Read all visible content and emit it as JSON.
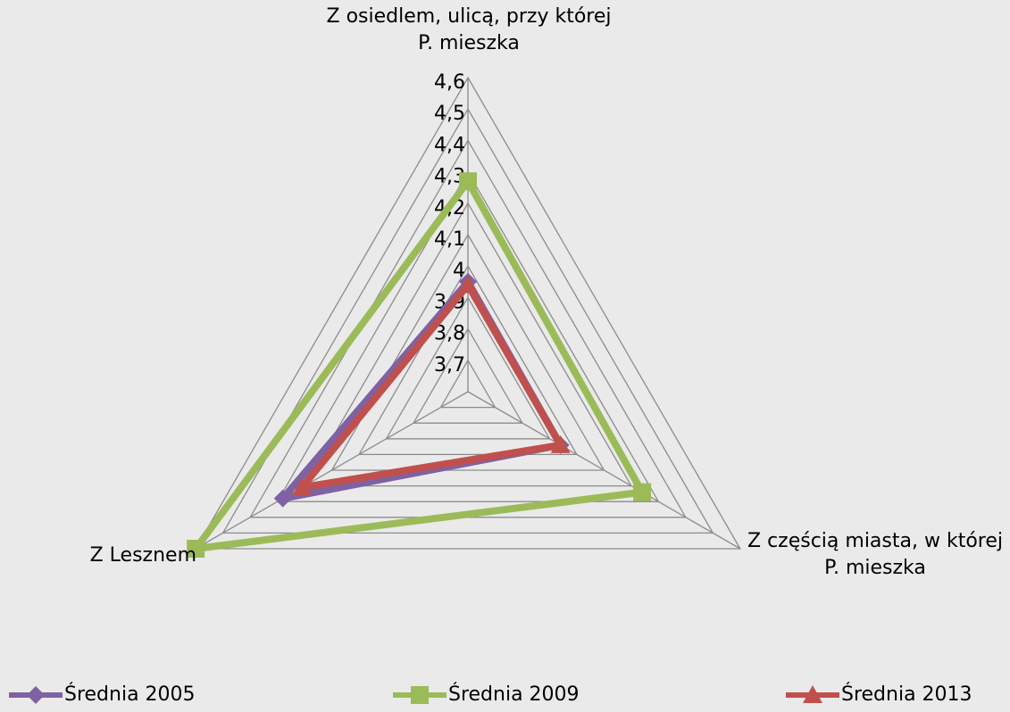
{
  "chart_data": {
    "type": "radar",
    "categories": [
      "Z osiedlem, ulicą, przy której P. mieszka",
      "Z częścią miasta, w której P. mieszka",
      "Z Lesznem"
    ],
    "series": [
      {
        "name": "Średnia 2005",
        "color": "#7e62a3",
        "marker": "diamond",
        "values": [
          3.95,
          3.94,
          4.28
        ]
      },
      {
        "name": "Średnia 2009",
        "color": "#9bbb59",
        "marker": "square",
        "values": [
          4.27,
          4.24,
          4.6
        ]
      },
      {
        "name": "Średnia 2013",
        "color": "#c0504d",
        "marker": "triangle",
        "values": [
          3.94,
          3.94,
          4.21
        ]
      }
    ],
    "ylim": [
      3.6,
      4.6
    ],
    "yticks": [
      {
        "value": 3.7,
        "label": "3,7"
      },
      {
        "value": 3.8,
        "label": "3,8"
      },
      {
        "value": 3.9,
        "label": "3,9"
      },
      4,
      {
        "value": 4.1,
        "label": "4,1"
      },
      {
        "value": 4.2,
        "label": "4,2"
      },
      {
        "value": 4.3,
        "label": "4,3"
      },
      {
        "value": 4.4,
        "label": "4,4"
      },
      {
        "value": 4.5,
        "label": "4,5"
      },
      {
        "value": 4.6,
        "label": "4,6"
      }
    ],
    "grid": true,
    "legend": "bottom"
  }
}
